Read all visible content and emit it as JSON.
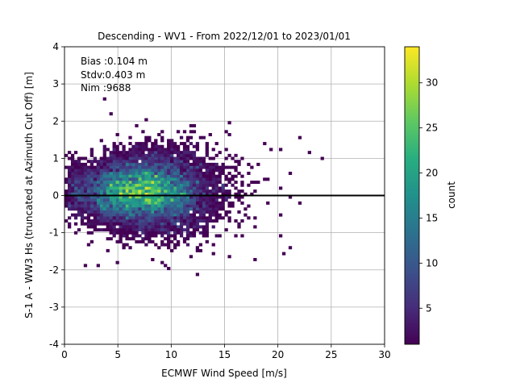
{
  "chart_data": {
    "type": "heatmap",
    "title": "Descending - WV1 - From 2022/12/01 to 2023/01/01",
    "xlabel": "ECMWF Wind Speed [m/s]",
    "ylabel": "S-1 A - WW3 Hs (truncated at Azimuth Cut Off) [m]",
    "xlim": [
      0,
      30
    ],
    "ylim": [
      -4,
      4
    ],
    "xticks": [
      0,
      5,
      10,
      15,
      20,
      25,
      30
    ],
    "yticks": [
      -4,
      -3,
      -2,
      -1,
      0,
      1,
      2,
      3,
      4
    ],
    "grid": true,
    "zero_line": 0,
    "bin_size": {
      "x": 0.3,
      "y": 0.08
    },
    "colorbar": {
      "label": "count",
      "range": [
        1,
        34
      ],
      "ticks": [
        5,
        10,
        15,
        20,
        25,
        30
      ],
      "colormap": "viridis"
    },
    "stats": {
      "bias": "Bias :0.104 m",
      "stdv": "Stdv:0.403 m",
      "nim": "Nim :9688"
    },
    "distribution": {
      "x_mean": 7.5,
      "x_std": 3.3,
      "y_mean": 0.1,
      "y_std": 0.4,
      "n": 9688,
      "peak_count": 33
    },
    "outliers": [
      {
        "x": 3.7,
        "y": 2.57
      },
      {
        "x": 4.4,
        "y": 2.16
      },
      {
        "x": 5.0,
        "y": 1.65
      },
      {
        "x": 10.5,
        "y": 1.7
      },
      {
        "x": 11.8,
        "y": 1.9
      },
      {
        "x": 12.2,
        "y": 1.85
      },
      {
        "x": 18.7,
        "y": 1.4
      },
      {
        "x": 19.2,
        "y": 1.25
      },
      {
        "x": 20.2,
        "y": 1.2
      },
      {
        "x": 21.9,
        "y": 1.52
      },
      {
        "x": 23.0,
        "y": 1.15
      },
      {
        "x": 24.2,
        "y": 1.0
      },
      {
        "x": 21.2,
        "y": -0.08
      },
      {
        "x": 22.0,
        "y": -0.2
      },
      {
        "x": 20.3,
        "y": -0.55
      },
      {
        "x": 15.3,
        "y": -1.62
      },
      {
        "x": 21.1,
        "y": -1.38
      },
      {
        "x": 20.4,
        "y": -1.53
      },
      {
        "x": 4.9,
        "y": -1.83
      },
      {
        "x": 9.6,
        "y": -1.98
      },
      {
        "x": 12.4,
        "y": -2.12
      },
      {
        "x": 1.8,
        "y": -1.9
      },
      {
        "x": 3.0,
        "y": -1.85
      }
    ]
  }
}
